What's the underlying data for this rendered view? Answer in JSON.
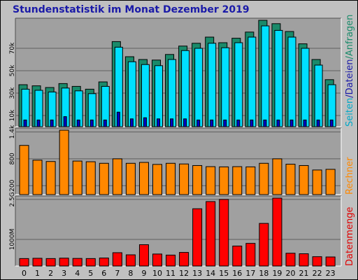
{
  "title": "Stundenstatistik im Monat Dezember 2019",
  "colors": {
    "hits": "#1a8a6a",
    "files": "#00e0ff",
    "pages": "#0000c8",
    "sites": "#ff8800",
    "kbytes": "#ff0000",
    "plot_bg": "#a0a0a0",
    "text_hits": "#1a8a6a",
    "text_files": "#1a1aa8",
    "text_pages": "#00a8c8",
    "text_sites": "#ff8800",
    "text_kbytes": "#e00000"
  },
  "labels": {
    "seiten": "Seiten",
    "sep1": "/",
    "dateien": "Dateien",
    "sep2": "/",
    "anfragen": "Anfragen",
    "rechner": "Rechner",
    "datenmenge": "Datenmenge"
  },
  "chart_data": [
    {
      "type": "bar",
      "panel": "requests",
      "categories": [
        "0",
        "1",
        "2",
        "3",
        "4",
        "5",
        "6",
        "7",
        "8",
        "9",
        "10",
        "11",
        "12",
        "13",
        "14",
        "15",
        "16",
        "17",
        "18",
        "19",
        "20",
        "21",
        "22",
        "23"
      ],
      "series": [
        {
          "name": "Anfragen",
          "values": [
            37500,
            36500,
            35000,
            38500,
            36000,
            33500,
            40000,
            76000,
            62500,
            60000,
            59500,
            64500,
            72000,
            74500,
            80000,
            75000,
            79000,
            84500,
            95000,
            92000,
            85000,
            74000,
            60000,
            42000
          ]
        },
        {
          "name": "Dateien",
          "values": [
            33500,
            32500,
            31000,
            34500,
            32000,
            29500,
            36000,
            71000,
            58000,
            55500,
            54500,
            60000,
            68000,
            70000,
            74500,
            70500,
            75000,
            80000,
            90000,
            86000,
            80000,
            70000,
            55000,
            37500
          ]
        },
        {
          "name": "Seiten",
          "values": [
            6000,
            6000,
            6000,
            9000,
            6000,
            6000,
            6000,
            13000,
            7000,
            8000,
            7000,
            7000,
            7000,
            6000,
            6000,
            6000,
            6000,
            6000,
            6000,
            6000,
            6000,
            6000,
            6000,
            6000
          ]
        }
      ],
      "yticks": [
        10000,
        30000,
        50000,
        70000
      ],
      "ytick_labels": [
        "10k",
        "30k",
        "50k",
        "70k"
      ],
      "ylim": [
        0,
        95000
      ]
    },
    {
      "type": "bar",
      "panel": "sites",
      "categories": [
        "0",
        "1",
        "2",
        "3",
        "4",
        "5",
        "6",
        "7",
        "8",
        "9",
        "10",
        "11",
        "12",
        "13",
        "14",
        "15",
        "16",
        "17",
        "18",
        "19",
        "20",
        "21",
        "22",
        "23"
      ],
      "series": [
        {
          "name": "Rechner",
          "values": [
            1100,
            770,
            740,
            1440,
            750,
            735,
            700,
            800,
            700,
            720,
            675,
            700,
            685,
            650,
            625,
            620,
            625,
            620,
            700,
            800,
            680,
            650,
            550,
            565
          ]
        }
      ],
      "yticks": [
        200,
        800,
        1400
      ],
      "ytick_labels": [
        "200",
        "800",
        "1.4k"
      ],
      "ylim": [
        0,
        1440
      ]
    },
    {
      "type": "bar",
      "panel": "volume",
      "categories": [
        "0",
        "1",
        "2",
        "3",
        "4",
        "5",
        "6",
        "7",
        "8",
        "9",
        "10",
        "11",
        "12",
        "13",
        "14",
        "15",
        "16",
        "17",
        "18",
        "19",
        "20",
        "21",
        "22",
        "23"
      ],
      "series": [
        {
          "name": "Datenmenge",
          "values": [
            280,
            290,
            280,
            295,
            285,
            280,
            300,
            500,
            420,
            800,
            450,
            410,
            510,
            2150,
            2420,
            2500,
            750,
            850,
            1600,
            2550,
            480,
            460,
            350,
            340
          ]
        }
      ],
      "yticks": [
        1000,
        2500
      ],
      "ytick_labels": [
        "1000M",
        "2.5G"
      ],
      "ylim": [
        0,
        2550
      ]
    }
  ]
}
